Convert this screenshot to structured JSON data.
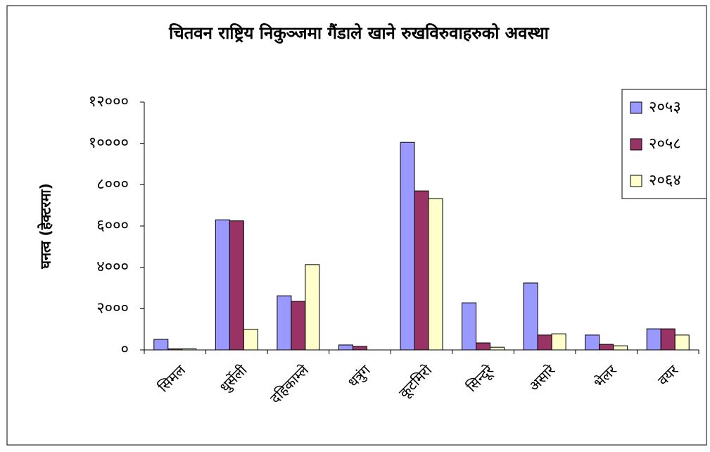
{
  "chart_data": {
    "type": "bar",
    "title": "चितवन राष्ट्रिय निकुञ्जमा गैंडाले खाने रुखविरुवाहरुको अवस्था",
    "y_label": "घनत्व (हेक्टरमा)",
    "categories": [
      "सिमल",
      "धुर्सेली",
      "दहिकाम्ले",
      "धत्रुंग",
      "कूटमिरो",
      "सिन्दूरे",
      "असारे",
      "भेलर",
      "वयर"
    ],
    "series": [
      {
        "name": "२०५३",
        "color": "#9999ff",
        "values": [
          510,
          6300,
          2620,
          240,
          10050,
          2280,
          3240,
          720,
          1020
        ]
      },
      {
        "name": "२०५८",
        "color": "#993366",
        "values": [
          50,
          6250,
          2350,
          170,
          7700,
          340,
          720,
          270,
          1020
        ]
      },
      {
        "name": "२०६४",
        "color": "#ffffcc",
        "values": [
          50,
          1000,
          4130,
          null,
          7330,
          130,
          780,
          200,
          720
        ]
      }
    ],
    "ylim": [
      0,
      12000
    ],
    "yticks": [
      {
        "value": 0,
        "label": "०"
      },
      {
        "value": 2000,
        "label": "२०००"
      },
      {
        "value": 4000,
        "label": "४०००"
      },
      {
        "value": 6000,
        "label": "६०००"
      },
      {
        "value": 8000,
        "label": "८०००"
      },
      {
        "value": 10000,
        "label": "१००००"
      },
      {
        "value": 12000,
        "label": "१२०००"
      }
    ],
    "legend": "right"
  }
}
